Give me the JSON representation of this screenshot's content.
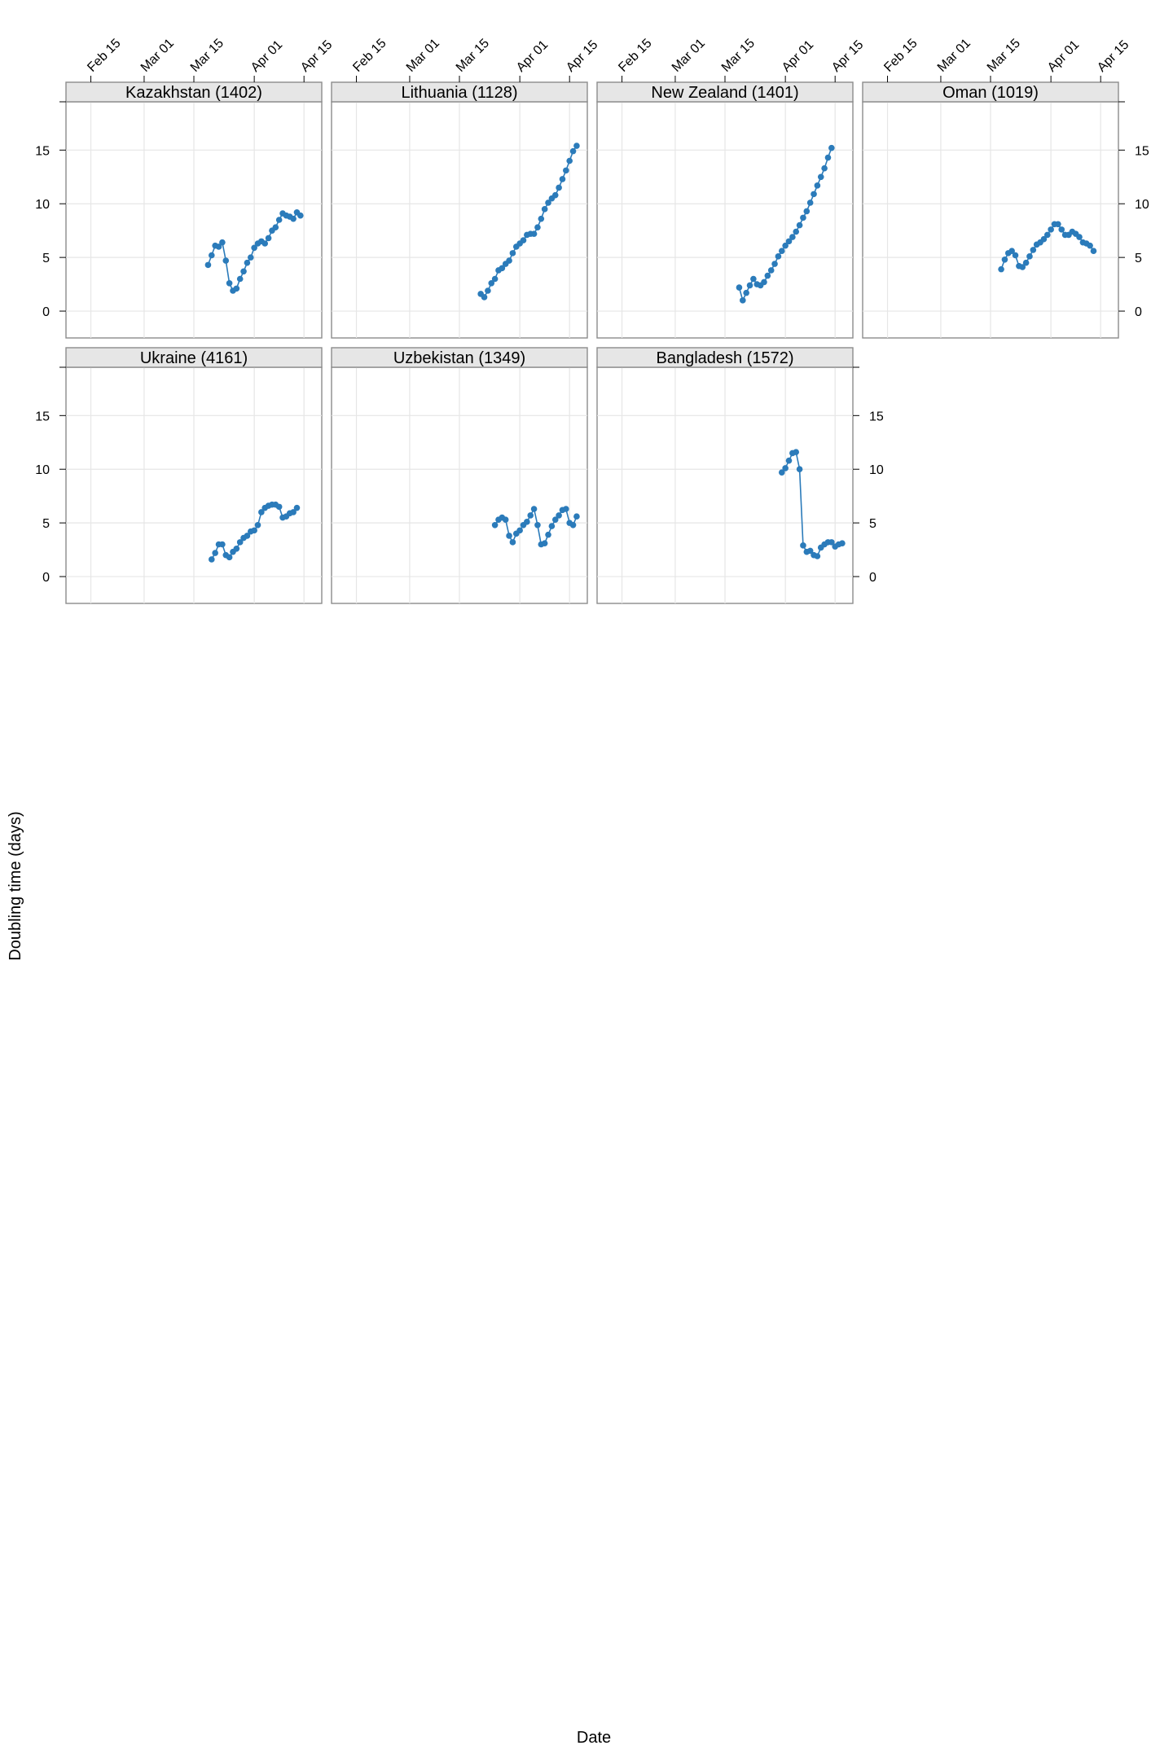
{
  "chart_data": {
    "type": "scatter",
    "xlabel": "Date",
    "ylabel": "Doubling time (days)",
    "x_ticks": [
      "Feb 15",
      "Mar 01",
      "Mar 15",
      "Apr 01",
      "Apr 15"
    ],
    "y_ticks": [
      0,
      5,
      10,
      15
    ],
    "xlim": [
      "2020-02-08",
      "2020-04-20"
    ],
    "ylim": [
      -2.5,
      19.5
    ],
    "grid": true,
    "color": "#2b7bba",
    "panels": [
      {
        "label": "Kazakhstan (1402)",
        "start_date": "2020-03-19",
        "values": [
          4.3,
          5.2,
          6.1,
          6.0,
          6.4,
          4.7,
          2.6,
          1.9,
          2.1,
          3.0,
          3.7,
          4.5,
          5.0,
          5.9,
          6.3,
          6.5,
          6.3,
          6.8,
          7.5,
          7.8,
          8.5,
          9.1,
          8.9,
          8.8,
          8.6,
          9.2,
          8.9
        ]
      },
      {
        "label": "Lithuania (1128)",
        "start_date": "2020-03-21",
        "values": [
          1.6,
          1.3,
          1.9,
          2.6,
          3.0,
          3.8,
          4.0,
          4.4,
          4.7,
          5.4,
          6.0,
          6.3,
          6.6,
          7.1,
          7.2,
          7.2,
          7.8,
          8.6,
          9.5,
          10.1,
          10.5,
          10.8,
          11.5,
          12.3,
          13.1,
          14.0,
          14.9,
          15.4
        ]
      },
      {
        "label": "New Zealand (1401)",
        "start_date": "2020-03-19",
        "values": [
          2.2,
          1.0,
          1.7,
          2.4,
          3.0,
          2.5,
          2.4,
          2.7,
          3.3,
          3.8,
          4.4,
          5.1,
          5.6,
          6.1,
          6.5,
          6.9,
          7.4,
          8.0,
          8.7,
          9.3,
          10.1,
          10.9,
          11.7,
          12.5,
          13.3,
          14.3,
          15.2
        ]
      },
      {
        "label": "Oman (1019)",
        "start_date": "2020-03-18",
        "values": [
          3.9,
          4.8,
          5.4,
          5.6,
          5.2,
          4.2,
          4.1,
          4.5,
          5.1,
          5.7,
          6.2,
          6.4,
          6.7,
          7.1,
          7.6,
          8.1,
          8.1,
          7.6,
          7.1,
          7.1,
          7.4,
          7.2,
          6.9,
          6.4,
          6.3,
          6.1,
          5.6
        ]
      },
      {
        "label": "Ukraine (4161)",
        "start_date": "2020-03-20",
        "values": [
          1.6,
          2.2,
          3.0,
          3.0,
          2.0,
          1.8,
          2.3,
          2.6,
          3.2,
          3.6,
          3.8,
          4.2,
          4.3,
          4.8,
          6.0,
          6.4,
          6.6,
          6.7,
          6.7,
          6.5,
          5.5,
          5.6,
          5.9,
          6.0,
          6.4
        ]
      },
      {
        "label": "Uzbekistan (1349)",
        "start_date": "2020-03-25",
        "values": [
          4.8,
          5.3,
          5.5,
          5.3,
          3.8,
          3.2,
          4.0,
          4.3,
          4.8,
          5.1,
          5.7,
          6.3,
          4.8,
          3.0,
          3.1,
          3.9,
          4.7,
          5.3,
          5.7,
          6.2,
          6.3,
          5.0,
          4.8,
          5.6
        ]
      },
      {
        "label": "Bangladesh (1572)",
        "start_date": "2020-03-31",
        "values": [
          9.7,
          10.1,
          10.8,
          11.5,
          11.6,
          10.0,
          2.9,
          2.3,
          2.4,
          2.0,
          1.9,
          2.7,
          3.0,
          3.2,
          3.2,
          2.8,
          3.0,
          3.1
        ]
      }
    ]
  }
}
